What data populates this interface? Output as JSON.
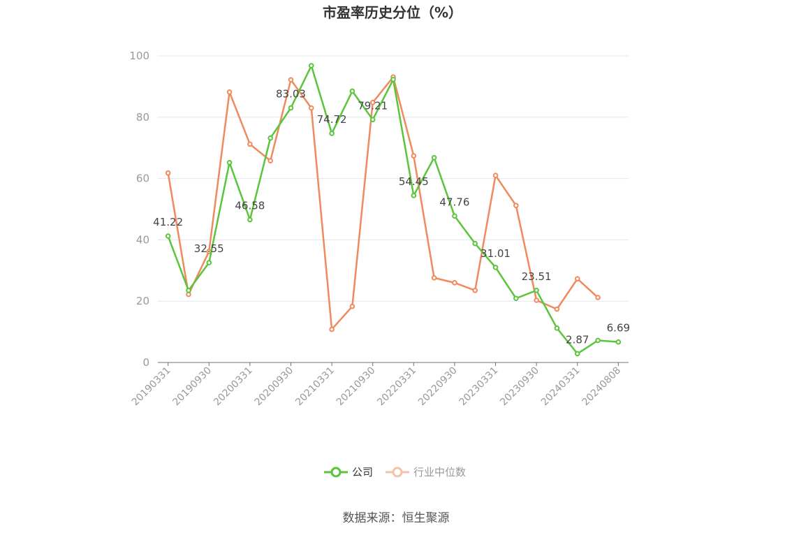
{
  "chart_data": {
    "type": "line",
    "title": "市盈率历史分位（%）",
    "source": "数据来源：恒生聚源",
    "ylim": [
      0,
      100
    ],
    "yticks": [
      "0",
      "20",
      "40",
      "60",
      "80",
      "100"
    ],
    "grid": true,
    "legend_position": "bottom",
    "x": [
      "20190331",
      "20190630",
      "20190930",
      "20191231",
      "20200331",
      "20200630",
      "20200930",
      "20201231",
      "20210331",
      "20210630",
      "20210930",
      "20211231",
      "20220331",
      "20220630",
      "20220930",
      "20221231",
      "20230331",
      "20230630",
      "20230930",
      "20231231",
      "20240331",
      "20240630",
      "20240808"
    ],
    "xticklabels": [
      "20190331",
      "20190930",
      "20200331",
      "20200930",
      "20210331",
      "20210930",
      "20220331",
      "20220930",
      "20230331",
      "20230930",
      "20240331",
      "20240808"
    ],
    "series": [
      {
        "name": "公司",
        "color": "#5ac53b",
        "values": [
          41.22,
          23.5,
          32.55,
          65.2,
          46.58,
          73.2,
          83.03,
          96.8,
          74.72,
          88.5,
          79.21,
          92.3,
          54.45,
          66.8,
          47.76,
          38.8,
          31.01,
          20.9,
          23.51,
          11.2,
          2.87,
          7.2,
          6.69
        ],
        "labels": [
          "41.22",
          "",
          "32.55",
          "",
          "46.58",
          "",
          "83.03",
          "",
          "74.72",
          "",
          "79.21",
          "",
          "54.45",
          "",
          "47.76",
          "",
          "31.01",
          "",
          "23.51",
          "",
          "2.87",
          "",
          "6.69"
        ]
      },
      {
        "name": "行业中位数",
        "color": "#f0895c",
        "values": [
          61.8,
          22.2,
          36.2,
          88.2,
          71.2,
          65.8,
          92.2,
          83.0,
          10.8,
          18.3,
          84.8,
          93.1,
          67.4,
          27.6,
          26.0,
          23.5,
          61.0,
          51.2,
          20.3,
          17.4,
          27.3,
          21.2,
          null
        ]
      }
    ]
  }
}
